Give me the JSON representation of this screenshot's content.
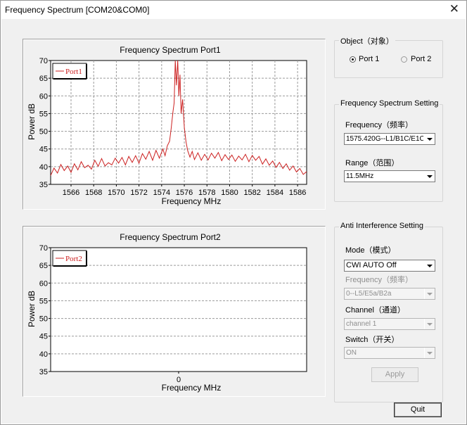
{
  "window": {
    "title": "Frequency Spectrum [COM20&COM0]",
    "close_glyph": "✕"
  },
  "object_group": {
    "title": "Object（对象）",
    "port1": "Port 1",
    "port2": "Port 2",
    "selected": "Port 1"
  },
  "spectrum_setting": {
    "title": "Frequency Spectrum Setting",
    "frequency_label": "Frequency（频率）",
    "frequency_value": "1575.420G--L1/B1C/E1C",
    "range_label": "Range（范围）",
    "range_value": "11.5MHz"
  },
  "anti_interference": {
    "title": "Anti Interference Setting",
    "mode_label": "Mode（模式）",
    "mode_value": "CWI AUTO Off",
    "frequency_label": "Frequency（频率）",
    "frequency_value": "0--L5/E5a/B2a",
    "channel_label": "Channel（通道）",
    "channel_value": "channel 1",
    "switch_label": "Switch（开关）",
    "switch_value": "ON",
    "apply_label": "Apply"
  },
  "quit_label": "Quit",
  "chart_data": [
    {
      "type": "line",
      "title": "Frequency Spectrum   Port1",
      "xlabel": "Frequency MHz",
      "ylabel": "Power dB",
      "xlim": [
        1564.2,
        1586.8
      ],
      "ylim": [
        35,
        70
      ],
      "xticks": [
        1566,
        1568,
        1570,
        1572,
        1574,
        1576,
        1578,
        1580,
        1582,
        1584,
        1586
      ],
      "yticks": [
        35,
        40,
        45,
        50,
        55,
        60,
        65,
        70
      ],
      "grid": true,
      "legend_position": "top-left",
      "series": [
        {
          "name": "Port1",
          "color": "#cc2020",
          "points": [
            [
              1564.2,
              37.5
            ],
            [
              1564.5,
              39.6
            ],
            [
              1564.8,
              38.2
            ],
            [
              1565.1,
              40.6
            ],
            [
              1565.4,
              38.9
            ],
            [
              1565.7,
              40.2
            ],
            [
              1566.0,
              38.4
            ],
            [
              1566.3,
              40.8
            ],
            [
              1566.6,
              39.1
            ],
            [
              1566.9,
              41.4
            ],
            [
              1567.2,
              39.7
            ],
            [
              1567.5,
              40.4
            ],
            [
              1567.8,
              39.3
            ],
            [
              1568.1,
              41.8
            ],
            [
              1568.4,
              40.1
            ],
            [
              1568.7,
              42.3
            ],
            [
              1569.0,
              40.2
            ],
            [
              1569.3,
              41.1
            ],
            [
              1569.6,
              40.5
            ],
            [
              1569.9,
              42.4
            ],
            [
              1570.2,
              41.0
            ],
            [
              1570.5,
              42.6
            ],
            [
              1570.8,
              40.5
            ],
            [
              1571.1,
              42.9
            ],
            [
              1571.4,
              41.2
            ],
            [
              1571.7,
              43.1
            ],
            [
              1572.0,
              41.0
            ],
            [
              1572.3,
              43.7
            ],
            [
              1572.6,
              42.1
            ],
            [
              1572.9,
              44.3
            ],
            [
              1573.2,
              41.8
            ],
            [
              1573.5,
              44.6
            ],
            [
              1573.8,
              42.4
            ],
            [
              1574.1,
              45.0
            ],
            [
              1574.3,
              43.1
            ],
            [
              1574.5,
              45.9
            ],
            [
              1574.7,
              47.2
            ],
            [
              1574.85,
              51.0
            ],
            [
              1575.0,
              55.5
            ],
            [
              1575.1,
              58.0
            ],
            [
              1575.2,
              70.0
            ],
            [
              1575.3,
              63.0
            ],
            [
              1575.42,
              70.0
            ],
            [
              1575.52,
              60.0
            ],
            [
              1575.62,
              66.0
            ],
            [
              1575.72,
              55.0
            ],
            [
              1575.85,
              59.0
            ],
            [
              1576.0,
              51.0
            ],
            [
              1576.15,
              47.0
            ],
            [
              1576.3,
              44.5
            ],
            [
              1576.5,
              42.7
            ],
            [
              1576.7,
              44.3
            ],
            [
              1576.9,
              42.0
            ],
            [
              1577.2,
              43.9
            ],
            [
              1577.5,
              41.8
            ],
            [
              1577.8,
              43.5
            ],
            [
              1578.1,
              41.9
            ],
            [
              1578.4,
              43.8
            ],
            [
              1578.7,
              42.4
            ],
            [
              1579.0,
              44.0
            ],
            [
              1579.3,
              41.7
            ],
            [
              1579.6,
              43.4
            ],
            [
              1579.9,
              42.0
            ],
            [
              1580.2,
              43.3
            ],
            [
              1580.5,
              41.5
            ],
            [
              1580.8,
              43.0
            ],
            [
              1581.1,
              41.9
            ],
            [
              1581.4,
              43.5
            ],
            [
              1581.7,
              41.4
            ],
            [
              1582.0,
              43.2
            ],
            [
              1582.3,
              41.8
            ],
            [
              1582.6,
              42.9
            ],
            [
              1582.9,
              40.7
            ],
            [
              1583.2,
              42.2
            ],
            [
              1583.5,
              40.4
            ],
            [
              1583.8,
              41.6
            ],
            [
              1584.1,
              39.8
            ],
            [
              1584.4,
              41.2
            ],
            [
              1584.7,
              39.5
            ],
            [
              1585.0,
              40.8
            ],
            [
              1585.3,
              39.0
            ],
            [
              1585.6,
              40.2
            ],
            [
              1585.9,
              38.5
            ],
            [
              1586.2,
              39.5
            ],
            [
              1586.5,
              37.8
            ],
            [
              1586.8,
              38.6
            ]
          ]
        }
      ]
    },
    {
      "type": "line",
      "title": "Frequency Spectrum   Port2",
      "xlabel": "Frequency MHz",
      "ylabel": "Power dB",
      "xticks": [
        0
      ],
      "ylim": [
        35,
        70
      ],
      "yticks": [
        35,
        40,
        45,
        50,
        55,
        60,
        65,
        70
      ],
      "grid": true,
      "legend_position": "top-left",
      "series": [
        {
          "name": "Port2",
          "color": "#cc2020",
          "points": []
        }
      ]
    }
  ]
}
